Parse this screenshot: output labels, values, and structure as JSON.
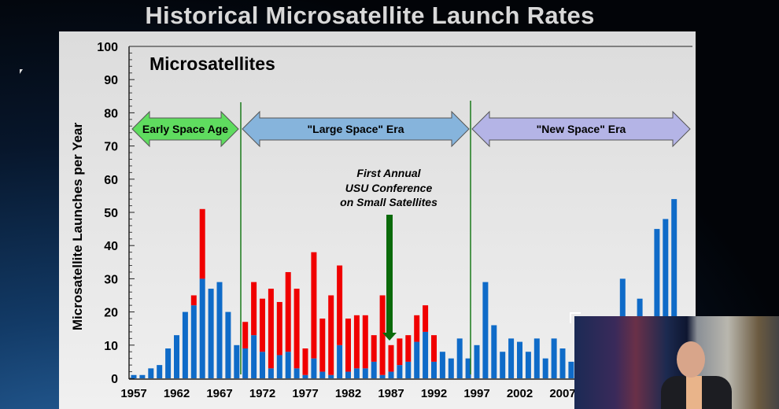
{
  "slide_title": "Historical Microsatellite Launch Rates",
  "chart_data": {
    "type": "bar",
    "stacked": true,
    "title": "Microsatellites",
    "ylabel": "Microsatellite Launches per Year",
    "xlabel": "",
    "ylim": [
      0,
      100
    ],
    "yticks": [
      "0",
      "10",
      "20",
      "30",
      "40",
      "50",
      "60",
      "70",
      "80",
      "90",
      "100"
    ],
    "xticks": [
      "1957",
      "1962",
      "1967",
      "1972",
      "1977",
      "1982",
      "1987",
      "1992",
      "1997",
      "2002",
      "2007"
    ],
    "grid": false,
    "colors": {
      "blue": "#0f6bc8",
      "red": "#f00000"
    },
    "years": [
      1957,
      1958,
      1959,
      1960,
      1961,
      1962,
      1963,
      1964,
      1965,
      1966,
      1967,
      1968,
      1969,
      1970,
      1971,
      1972,
      1973,
      1974,
      1975,
      1976,
      1977,
      1978,
      1979,
      1980,
      1981,
      1982,
      1983,
      1984,
      1985,
      1986,
      1987,
      1988,
      1989,
      1990,
      1991,
      1992,
      1993,
      1994,
      1995,
      1996,
      1997,
      1998,
      1999,
      2000,
      2001,
      2002,
      2003,
      2004,
      2005,
      2006,
      2007,
      2008,
      2014,
      2016,
      2018,
      2019,
      2020
    ],
    "series": [
      {
        "color": "#0f6bc8",
        "values": [
          1,
          1,
          3,
          4,
          9,
          13,
          20,
          22,
          30,
          27,
          29,
          20,
          10,
          9,
          13,
          8,
          3,
          7,
          8,
          3,
          1,
          6,
          2,
          1,
          10,
          2,
          3,
          3,
          5,
          1,
          2,
          4,
          5,
          11,
          14,
          5,
          8,
          6,
          12,
          6,
          10,
          29,
          16,
          8,
          12,
          11,
          8,
          12,
          6,
          12,
          9,
          5,
          30,
          24,
          45,
          48,
          54
        ]
      },
      {
        "color": "#f00000",
        "values": [
          0,
          0,
          0,
          0,
          0,
          0,
          0,
          3,
          21,
          0,
          0,
          0,
          0,
          8,
          16,
          16,
          24,
          16,
          24,
          24,
          8,
          32,
          16,
          24,
          24,
          16,
          16,
          16,
          8,
          24,
          8,
          8,
          8,
          8,
          8,
          8,
          0,
          0,
          0,
          0,
          0,
          0,
          0,
          0,
          0,
          0,
          0,
          0,
          0,
          0,
          0,
          0,
          0,
          0,
          0,
          0,
          0
        ]
      }
    ],
    "eras": [
      {
        "label": "Early Space Age",
        "color": "#5fdc5f"
      },
      {
        "label": "\"Large Space\" Era",
        "color": "#86b4dc"
      },
      {
        "label": "\"New Space\" Era",
        "color": "#b4b4e6"
      }
    ],
    "annotation": {
      "lines": [
        "First Annual",
        "USU Conference",
        "on Small Satellites"
      ],
      "year": 1987,
      "arrow_color": "#0a6a0a"
    }
  }
}
